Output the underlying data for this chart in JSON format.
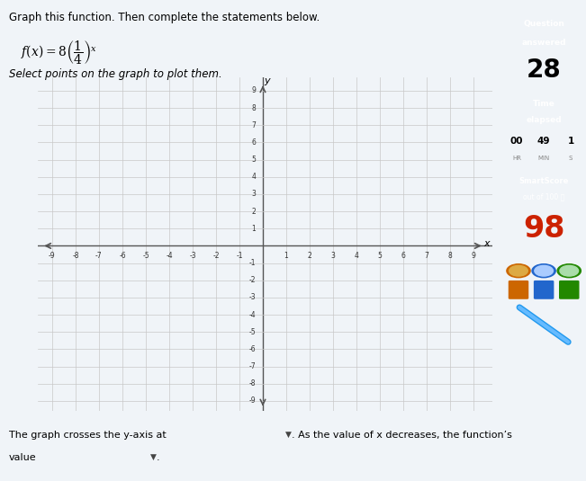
{
  "title": "Graph this function. Then complete the statements below.",
  "instruction": "Select points on the graph to plot them.",
  "xmin": -9,
  "xmax": 9,
  "ymin": -9,
  "ymax": 9,
  "grid_color": "#c8c8c8",
  "grid_lw": 0.5,
  "axis_color": "#555555",
  "bg_color": "#dce8f0",
  "main_bg": "#f0f4f8",
  "graph_bg": "#e8eef4",
  "bottom_text1": "The graph crosses the y-axis at",
  "bottom_text2": ". As the value of x decreases, the function’s",
  "bottom_text3": "value",
  "dropdown_color": "#b8d4e8",
  "sidebar_question_bg": "#6aaa2e",
  "sidebar_question_text": "Question\nanswered",
  "sidebar_number": "28",
  "sidebar_time_bg": "#29abe2",
  "sidebar_time_text": "Time\nelapsed",
  "time_val1": "00",
  "time_val2": "49",
  "time_val3": "1",
  "time_unit1": "HR",
  "time_unit2": "MIN",
  "time_unit3": "S",
  "smartscore_bg": "#cc2200",
  "smartscore_text": "SmartScore\nout of 100",
  "smartscore_value": "98",
  "smartscore_color": "#cc2200",
  "medal_colors": [
    "#cc6600",
    "#2266cc",
    "#228800"
  ]
}
